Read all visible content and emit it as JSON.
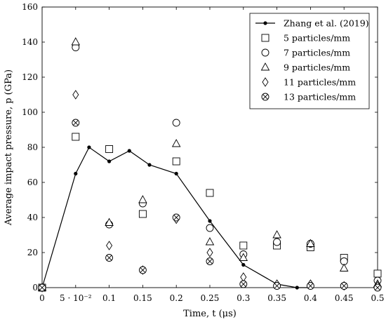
{
  "chart_data": {
    "type": "scatter",
    "xlabel": "Time, t (μs)",
    "ylabel": "Average impact pressure, p (GPa)",
    "xlim": [
      0,
      0.5
    ],
    "ylim": [
      0,
      160
    ],
    "grid": false,
    "legend_position": "top-right",
    "x_ticks": [
      {
        "value": 0,
        "label": "0"
      },
      {
        "value": 0.05,
        "label": "5 · 10⁻²"
      },
      {
        "value": 0.1,
        "label": "0.1"
      },
      {
        "value": 0.15,
        "label": "0.15"
      },
      {
        "value": 0.2,
        "label": "0.2"
      },
      {
        "value": 0.25,
        "label": "0.25"
      },
      {
        "value": 0.3,
        "label": "0.3"
      },
      {
        "value": 0.35,
        "label": "0.35"
      },
      {
        "value": 0.4,
        "label": "0.4"
      },
      {
        "value": 0.45,
        "label": "0.45"
      },
      {
        "value": 0.5,
        "label": "0.5"
      }
    ],
    "y_ticks": [
      {
        "value": 0,
        "label": "0"
      },
      {
        "value": 20,
        "label": "20"
      },
      {
        "value": 40,
        "label": "40"
      },
      {
        "value": 60,
        "label": "60"
      },
      {
        "value": 80,
        "label": "80"
      },
      {
        "value": 100,
        "label": "100"
      },
      {
        "value": 120,
        "label": "120"
      },
      {
        "value": 140,
        "label": "140"
      },
      {
        "value": 160,
        "label": "160"
      }
    ],
    "series": [
      {
        "name": "Zhang et al. (2019)",
        "marker": "dot-line",
        "x": [
          0,
          0.05,
          0.07,
          0.1,
          0.13,
          0.16,
          0.2,
          0.25,
          0.3,
          0.35,
          0.38,
          0.4
        ],
        "y": [
          0,
          65,
          80,
          72,
          78,
          70,
          65,
          38,
          13,
          2,
          0,
          0
        ]
      },
      {
        "name": "5 particles/mm",
        "marker": "square",
        "x": [
          0,
          0.05,
          0.1,
          0.15,
          0.2,
          0.25,
          0.3,
          0.35,
          0.4,
          0.45,
          0.5
        ],
        "y": [
          0,
          86,
          79,
          42,
          72,
          54,
          24,
          24,
          23,
          17,
          8
        ]
      },
      {
        "name": "7 particles/mm",
        "marker": "circle",
        "x": [
          0,
          0.05,
          0.1,
          0.15,
          0.2,
          0.25,
          0.3,
          0.35,
          0.4,
          0.45,
          0.5
        ],
        "y": [
          0,
          137,
          36,
          48,
          94,
          34,
          19,
          26,
          25,
          15,
          4
        ]
      },
      {
        "name": "9 particles/mm",
        "marker": "triangle",
        "x": [
          0,
          0.05,
          0.1,
          0.15,
          0.2,
          0.25,
          0.3,
          0.35,
          0.4,
          0.45,
          0.5
        ],
        "y": [
          0,
          140,
          37,
          50,
          82,
          26,
          17,
          30,
          25,
          11,
          2
        ]
      },
      {
        "name": "11 particles/mm",
        "marker": "diamond",
        "x": [
          0,
          0.05,
          0.1,
          0.15,
          0.2,
          0.25,
          0.3,
          0.35,
          0.4,
          0.45,
          0.5
        ],
        "y": [
          0,
          110,
          24,
          10,
          39,
          20,
          6,
          2,
          2,
          1,
          1
        ]
      },
      {
        "name": "13 particles/mm",
        "marker": "circle-x",
        "x": [
          0,
          0.05,
          0.1,
          0.15,
          0.2,
          0.25,
          0.3,
          0.35,
          0.4,
          0.45,
          0.5
        ],
        "y": [
          0,
          94,
          17,
          10,
          40,
          15,
          2,
          1,
          1,
          1,
          0
        ]
      }
    ]
  }
}
